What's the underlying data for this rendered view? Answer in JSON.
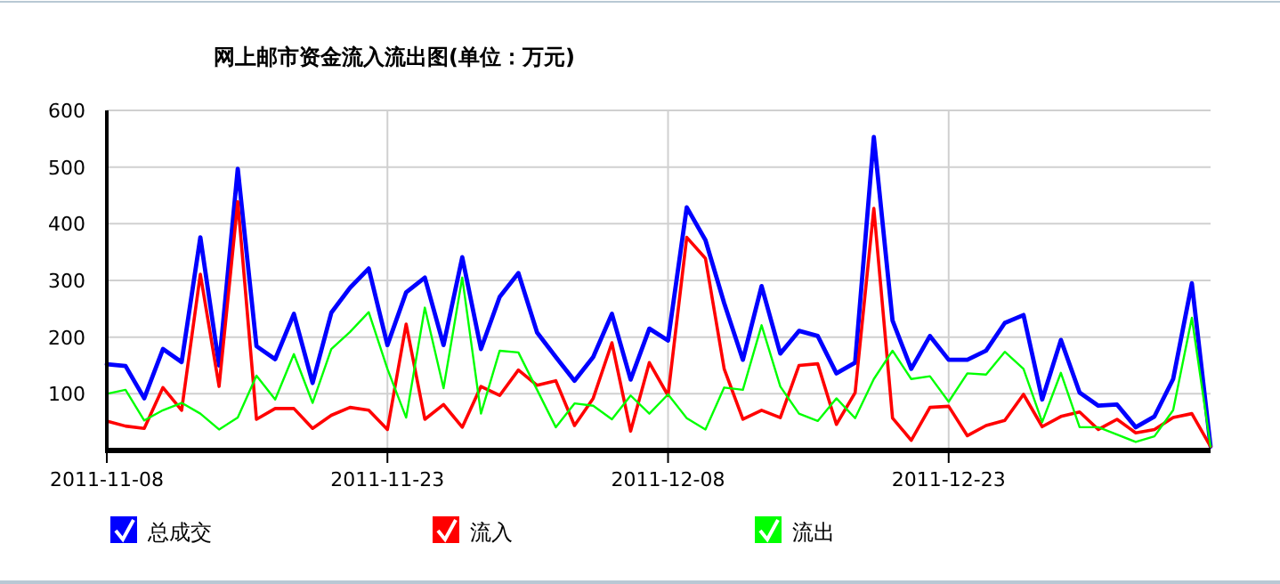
{
  "chart_data": {
    "type": "line",
    "title": "网上邮市资金流入流出图(单位：万元)",
    "x": [
      "2011-11-08",
      "2011-11-09",
      "2011-11-10",
      "2011-11-11",
      "2011-11-12",
      "2011-11-13",
      "2011-11-14",
      "2011-11-15",
      "2011-11-16",
      "2011-11-17",
      "2011-11-18",
      "2011-11-19",
      "2011-11-20",
      "2011-11-21",
      "2011-11-22",
      "2011-11-23",
      "2011-11-24",
      "2011-11-25",
      "2011-11-26",
      "2011-11-27",
      "2011-11-28",
      "2011-11-29",
      "2011-11-30",
      "2011-12-01",
      "2011-12-02",
      "2011-12-03",
      "2011-12-04",
      "2011-12-05",
      "2011-12-06",
      "2011-12-07",
      "2011-12-08",
      "2011-12-09",
      "2011-12-10",
      "2011-12-11",
      "2011-12-12",
      "2011-12-13",
      "2011-12-14",
      "2011-12-15",
      "2011-12-16",
      "2011-12-17",
      "2011-12-18",
      "2011-12-19",
      "2011-12-20",
      "2011-12-21",
      "2011-12-22",
      "2011-12-23",
      "2011-12-24",
      "2011-12-25",
      "2011-12-26",
      "2011-12-27",
      "2011-12-28",
      "2011-12-29",
      "2011-12-30",
      "2011-12-31",
      "2012-01-01",
      "2012-01-02",
      "2012-01-03",
      "2012-01-04",
      "2012-01-05",
      "2012-01-06"
    ],
    "series": [
      {
        "name": "总成交",
        "color": "#0000ff",
        "values": [
          152,
          149,
          92,
          179,
          156,
          376,
          150,
          497,
          184,
          161,
          241,
          119,
          243,
          287,
          321,
          186,
          279,
          305,
          186,
          341,
          179,
          271,
          313,
          208,
          165,
          123,
          165,
          241,
          125,
          215,
          194,
          429,
          371,
          260,
          160,
          290,
          171,
          211,
          202,
          136,
          155,
          553,
          229,
          144,
          202,
          160,
          160,
          176,
          225,
          239,
          90,
          195,
          102,
          79,
          81,
          41,
          60,
          126,
          295,
          7
        ]
      },
      {
        "name": "流入",
        "color": "#ff0000",
        "values": [
          52,
          43,
          39,
          111,
          71,
          311,
          113,
          439,
          55,
          74,
          74,
          39,
          62,
          76,
          71,
          37,
          223,
          55,
          81,
          41,
          113,
          97,
          142,
          115,
          123,
          44,
          92,
          190,
          34,
          155,
          97,
          376,
          339,
          144,
          55,
          71,
          58,
          150,
          153,
          46,
          102,
          427,
          57,
          18,
          76,
          78,
          26,
          44,
          53,
          99,
          42,
          60,
          68,
          37,
          55,
          31,
          37,
          58,
          65,
          7
        ]
      },
      {
        "name": "流出",
        "color": "#00ff00",
        "values": [
          100,
          107,
          53,
          71,
          84,
          65,
          37,
          58,
          132,
          90,
          170,
          84,
          179,
          209,
          244,
          144,
          58,
          252,
          110,
          305,
          65,
          176,
          173,
          107,
          41,
          83,
          79,
          55,
          97,
          65,
          99,
          57,
          37,
          111,
          107,
          221,
          113,
          65,
          52,
          92,
          57,
          126,
          176,
          126,
          131,
          86,
          136,
          134,
          174,
          144,
          50,
          137,
          41,
          41,
          28,
          15,
          25,
          71,
          234,
          7
        ]
      }
    ],
    "xlim": [
      "2011-11-08",
      "2012-01-06"
    ],
    "xticks": [
      "2011-11-08",
      "2011-11-23",
      "2011-12-08",
      "2011-12-23"
    ],
    "ylim": [
      0,
      600
    ],
    "yticks": [
      100,
      200,
      300,
      400,
      500,
      600
    ],
    "grid": true,
    "legend": "bottom",
    "marker": "none",
    "line_style": "solid"
  }
}
